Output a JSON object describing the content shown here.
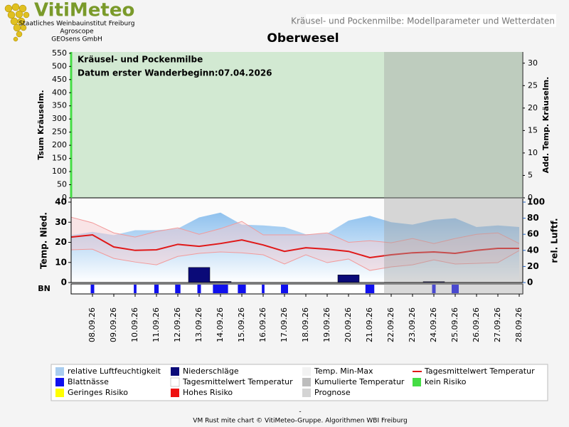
{
  "header": {
    "logo": "VitiMeteo",
    "org1": "Staatliches Weinbauinstitut Freiburg",
    "org2": "Agroscope",
    "org3": "GEOsens GmbH",
    "page_title": "Kräusel- und Pockenmilbe: Modellparameter und Wetterdaten"
  },
  "chart_data": [
    {
      "type": "risk",
      "title": "Oberwesel",
      "ylabel": "Tsum Kräuselm.",
      "y2label": "Add. Temp. Kräuselm.",
      "annotations": [
        "Kräusel- und Pockenmilbe",
        "Datum  erster Wanderbeginn:07.04.2026"
      ],
      "ylim": [
        0,
        555
      ],
      "yticks": [
        0,
        50,
        100,
        150,
        200,
        250,
        300,
        350,
        400,
        450,
        500,
        550
      ],
      "y2lim": [
        0,
        32.5
      ],
      "y2ticks": [
        0,
        5,
        10,
        15,
        20,
        25,
        30
      ],
      "risk_color": "#d2e9d2",
      "risk_line_color": "#44dd44"
    },
    {
      "type": "weather",
      "ylabel": "Temp. Nied.",
      "y2label": "rel. Luftf.",
      "row_label": "BN",
      "categories": [
        null,
        "08.09.26",
        "09.09.26",
        "10.09.26",
        "11.09.26",
        "12.09.26",
        "13.09.26",
        "14.09.26",
        "15.09.26",
        "16.09.26",
        "17.09.26",
        "18.09.26",
        "19.09.26",
        "20.09.26",
        "21.09.26",
        "22.09.26",
        "23.09.26",
        "24.09.26",
        "25.09.26",
        "26.09.26",
        "27.09.26",
        "28.09.26"
      ],
      "forecast_start": "22.09.26",
      "ylim": [
        0,
        40
      ],
      "yticks": [
        0,
        10,
        20,
        30,
        40
      ],
      "y2lim": [
        0,
        100
      ],
      "y2ticks": [
        0,
        20,
        40,
        60,
        80,
        100
      ],
      "humidity": {
        "color": "#8fc1ee",
        "axis": "y2",
        "values": [
          59,
          63,
          59,
          65,
          65,
          67,
          81,
          87,
          72,
          71,
          69,
          60,
          61,
          77,
          83,
          75,
          72,
          78,
          80,
          69,
          71,
          69
        ]
      },
      "temp_max": {
        "color": "#f29a9a",
        "values": [
          32.5,
          29.7,
          24.7,
          22.6,
          25.4,
          27.2,
          24,
          26.8,
          30.4,
          23.7,
          23.7,
          23.7,
          24.7,
          20,
          20.8,
          19.8,
          21.9,
          19.4,
          21.9,
          24,
          24.7,
          19.4
        ]
      },
      "temp_min": {
        "color": "#f29a9a",
        "values": [
          16.3,
          16.6,
          12,
          10.2,
          8.8,
          13,
          14.5,
          15.2,
          14.8,
          13.8,
          9.2,
          13.8,
          9.9,
          11.7,
          6,
          7.8,
          8.8,
          11.3,
          9.2,
          9.5,
          9.9,
          15.9
        ]
      },
      "temp_mean": {
        "color": "#e01818",
        "values": [
          22.6,
          23.7,
          17.7,
          16,
          16.3,
          19,
          18,
          19.4,
          21.2,
          18.7,
          15.5,
          17.3,
          16.6,
          15.5,
          12.4,
          13.8,
          14.8,
          15.2,
          14.5,
          16,
          17,
          17
        ]
      },
      "precipitation": {
        "color": "#0a0a78",
        "values": [
          0,
          0,
          0,
          0,
          0,
          0,
          7.5,
          0.5,
          0,
          0,
          0,
          0,
          0,
          3.8,
          0,
          0,
          0,
          0.5,
          0,
          0,
          0,
          0
        ]
      },
      "leaf_wetness": {
        "color": "#1010ee",
        "values": [
          0,
          4,
          0,
          3,
          5,
          6,
          4,
          17,
          9,
          3,
          8,
          0,
          0,
          0,
          10,
          0,
          0,
          4,
          8,
          0,
          0,
          0
        ]
      }
    }
  ],
  "legend": [
    {
      "label": "relative Luftfeuchtigkeit",
      "color": "#a9cdef"
    },
    {
      "label": "Niederschläge",
      "color": "#0a0a78"
    },
    {
      "label": "Temp. Min-Max",
      "color": "#f2f2f2"
    },
    {
      "label": "Tagesmittelwert Temperatur",
      "color": "#e01818",
      "style": "line"
    },
    {
      "label": "Blattnässe",
      "color": "#1010ee"
    },
    {
      "label": "Tagesmittelwert Temperatur",
      "color": "#ffffff"
    },
    {
      "label": "Kumulierte Temperatur",
      "color": "#bdbdbd"
    },
    {
      "label": "kein Risiko",
      "color": "#44dd44"
    },
    {
      "label": "Geringes Risiko",
      "color": "#ffff00"
    },
    {
      "label": "Hohes Risiko",
      "color": "#ee1111"
    },
    {
      "label": "Prognose",
      "color": "#d4d4d4"
    }
  ],
  "footer": {
    "dash": "-",
    "credit": "VM Rust mite chart © VitiMeteo-Gruppe. Algorithmen WBI Freiburg"
  }
}
